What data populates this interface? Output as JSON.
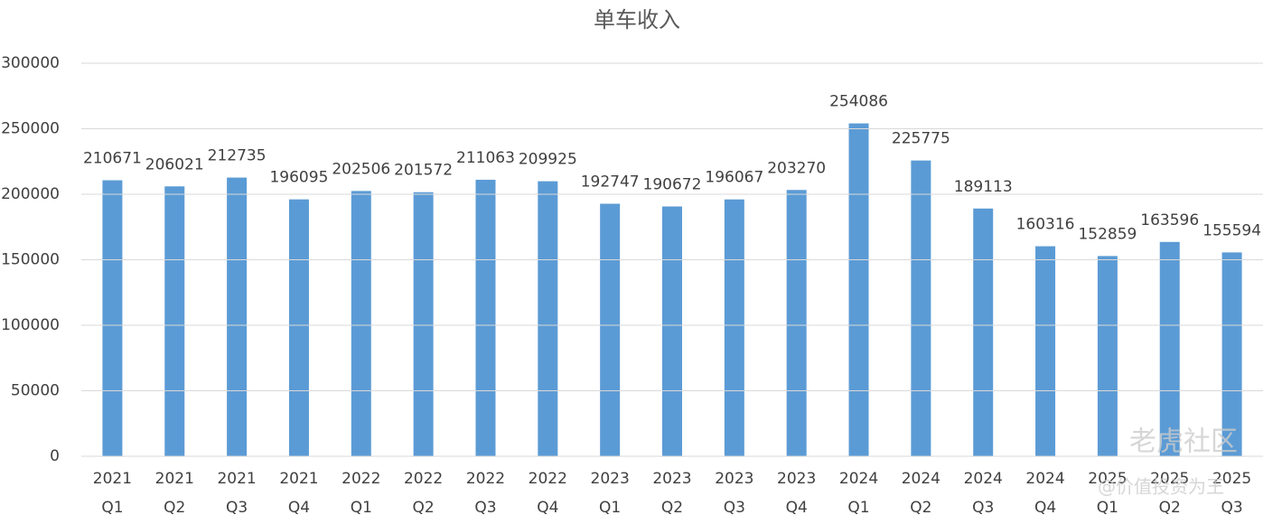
{
  "chart_data": {
    "type": "bar",
    "title": "单车收入",
    "categories": [
      [
        "2021",
        "Q1"
      ],
      [
        "2021",
        "Q2"
      ],
      [
        "2021",
        "Q3"
      ],
      [
        "2021",
        "Q4"
      ],
      [
        "2022",
        "Q1"
      ],
      [
        "2022",
        "Q2"
      ],
      [
        "2022",
        "Q3"
      ],
      [
        "2022",
        "Q4"
      ],
      [
        "2023",
        "Q1"
      ],
      [
        "2023",
        "Q2"
      ],
      [
        "2023",
        "Q3"
      ],
      [
        "2023",
        "Q4"
      ],
      [
        "2024",
        "Q1"
      ],
      [
        "2024",
        "Q2"
      ],
      [
        "2024",
        "Q3"
      ],
      [
        "2024",
        "Q4"
      ],
      [
        "2025",
        "Q1"
      ],
      [
        "2025",
        "Q2"
      ],
      [
        "2025",
        "Q3"
      ]
    ],
    "values": [
      210671,
      206021,
      212735,
      196095,
      202506,
      201572,
      211063,
      209925,
      192747,
      190672,
      196067,
      203270,
      254086,
      225775,
      189113,
      160316,
      152859,
      163596,
      155594
    ],
    "color": "#5b9bd5",
    "ylim": [
      0,
      300000
    ],
    "yticks": [
      0,
      50000,
      100000,
      150000,
      200000,
      250000,
      300000
    ],
    "grid": true,
    "watermark": [
      "老虎社区",
      "@价值投资为王"
    ]
  }
}
